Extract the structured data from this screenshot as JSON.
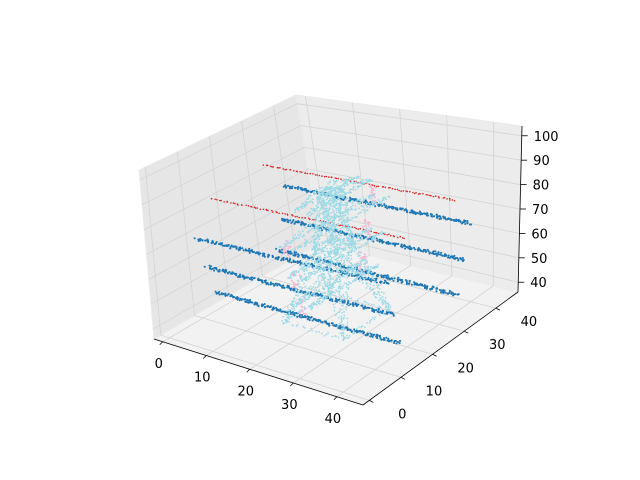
{
  "chart_data": {
    "type": "scatter3d",
    "title": "",
    "xlabel": "",
    "ylabel": "",
    "zlabel": "",
    "xlim": [
      -2,
      46
    ],
    "ylim": [
      -2,
      47
    ],
    "zlim": [
      36,
      104
    ],
    "x_ticks": [
      "0",
      "10",
      "20",
      "30",
      "40"
    ],
    "y_ticks": [
      "0",
      "10",
      "20",
      "30",
      "40"
    ],
    "z_ticks": [
      "40",
      "50",
      "60",
      "70",
      "80",
      "90",
      "100"
    ],
    "grid": true,
    "pane_color": "#f2f2f2",
    "series": [
      {
        "role": "ground wires",
        "color": "#d62728",
        "lines": [
          {
            "from": [
              0,
              32,
              84
            ],
            "to": [
              42,
              32,
              84
            ]
          },
          {
            "from": [
              2,
              13,
              84
            ],
            "to": [
              44,
              13,
              84
            ]
          }
        ]
      },
      {
        "role": "conductors",
        "color": "#1f77b4",
        "lines": [
          {
            "from": [
              0,
              37,
              71
            ],
            "to": [
              42,
              37,
              71
            ]
          },
          {
            "from": [
              2,
              8,
              71
            ],
            "to": [
              44,
              8,
              71
            ]
          },
          {
            "from": [
              0,
              35,
              58
            ],
            "to": [
              42,
              35,
              58
            ]
          },
          {
            "from": [
              2,
              10,
              58
            ],
            "to": [
              44,
              10,
              58
            ]
          },
          {
            "from": [
              0,
              33,
              46
            ],
            "to": [
              42,
              33,
              46
            ]
          },
          {
            "from": [
              2,
              12,
              46
            ],
            "to": [
              44,
              12,
              46
            ]
          }
        ]
      },
      {
        "role": "insulators",
        "color": "#f7b6d2",
        "points": [
          [
            20,
            37,
            75
          ],
          [
            22,
            8,
            75
          ],
          [
            20,
            35,
            62
          ],
          [
            22,
            10,
            62
          ],
          [
            20,
            33,
            50
          ],
          [
            22,
            12,
            50
          ]
        ]
      },
      {
        "role": "tower",
        "color": "#9edae5",
        "base": {
          "x": [
            15,
            29
          ],
          "y": [
            15,
            29
          ],
          "z": 38
        },
        "waist": {
          "x": [
            19.5,
            24.5
          ],
          "y": [
            19.5,
            24.5
          ],
          "z": 66
        },
        "top": {
          "x": [
            20.5,
            23.5
          ],
          "y": [
            20.5,
            23.5
          ],
          "z": 88
        },
        "cross_arms": [
          {
            "z": 86,
            "y_span": [
              13,
              32
            ]
          },
          {
            "z": 75,
            "y_span": [
              8,
              37
            ]
          },
          {
            "z": 62,
            "y_span": [
              10,
              35
            ]
          },
          {
            "z": 50,
            "y_span": [
              12,
              33
            ]
          }
        ]
      }
    ]
  }
}
